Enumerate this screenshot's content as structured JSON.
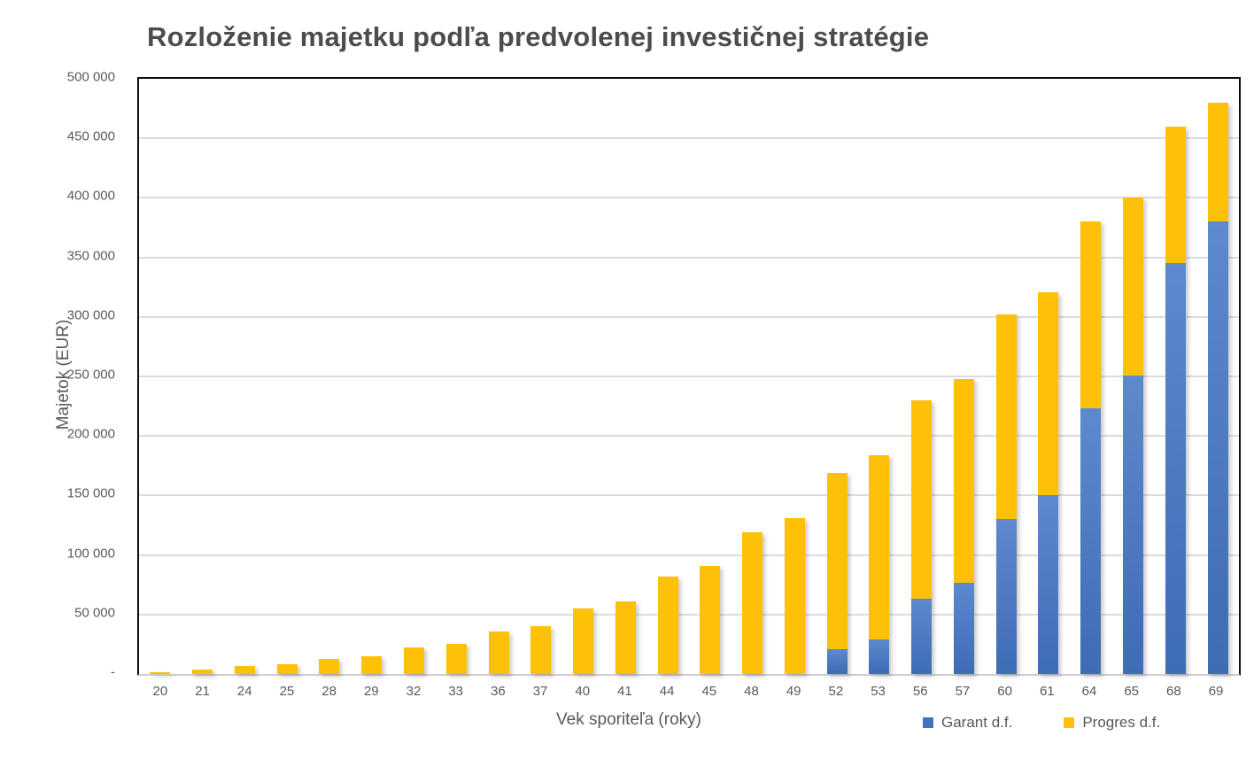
{
  "title": "Rozloženie majetku podľa predvolenej investičnej stratégie",
  "colors": {
    "garant_blue": "#4472C4",
    "garant_gradient_top": "#5d89ce",
    "garant_gradient_bottom": "#3e6cb5",
    "progres_yellow": "#FFC008",
    "gridline": "#DCDCDC",
    "axis_text": "#595959",
    "title_text": "#4C4C4C",
    "plot_border": "#0D0D0D"
  },
  "chart_data": {
    "type": "bar",
    "stacked": true,
    "title": "Rozloženie majetku podľa predvolenej investičnej stratégie",
    "xlabel": "Vek sporiteľa (roky)",
    "ylabel": "Majetok (EUR)",
    "ylim": [
      0,
      500000
    ],
    "ytick_step": 50000,
    "ytick_labels_bottom_to_top": [
      "-",
      "50 000",
      "100 000",
      "150 000",
      "200 000",
      "250 000",
      "300 000",
      "350 000",
      "400 000",
      "450 000",
      "500 000"
    ],
    "grid": true,
    "legend_position": "bottom-right",
    "categories": [
      "20",
      "21",
      "24",
      "25",
      "28",
      "29",
      "32",
      "33",
      "36",
      "37",
      "40",
      "41",
      "44",
      "45",
      "48",
      "49",
      "52",
      "53",
      "56",
      "57",
      "60",
      "61",
      "64",
      "65",
      "68",
      "69"
    ],
    "series": [
      {
        "name": "Garant d.f.",
        "color_key": "garant_blue",
        "values": [
          0,
          0,
          0,
          0,
          0,
          0,
          0,
          0,
          0,
          0,
          0,
          0,
          0,
          0,
          0,
          0,
          21000,
          29000,
          63000,
          77000,
          130000,
          150500,
          223000,
          251000,
          345000,
          380500
        ]
      },
      {
        "name": "Progres d.f.",
        "color_key": "progres_yellow",
        "values": [
          1500,
          3500,
          7000,
          8500,
          13000,
          15000,
          22500,
          25500,
          35500,
          40000,
          55000,
          61000,
          82000,
          90500,
          119000,
          131000,
          148000,
          155000,
          167000,
          171000,
          172000,
          170500,
          157000,
          149000,
          115000,
          99500
        ]
      }
    ]
  }
}
